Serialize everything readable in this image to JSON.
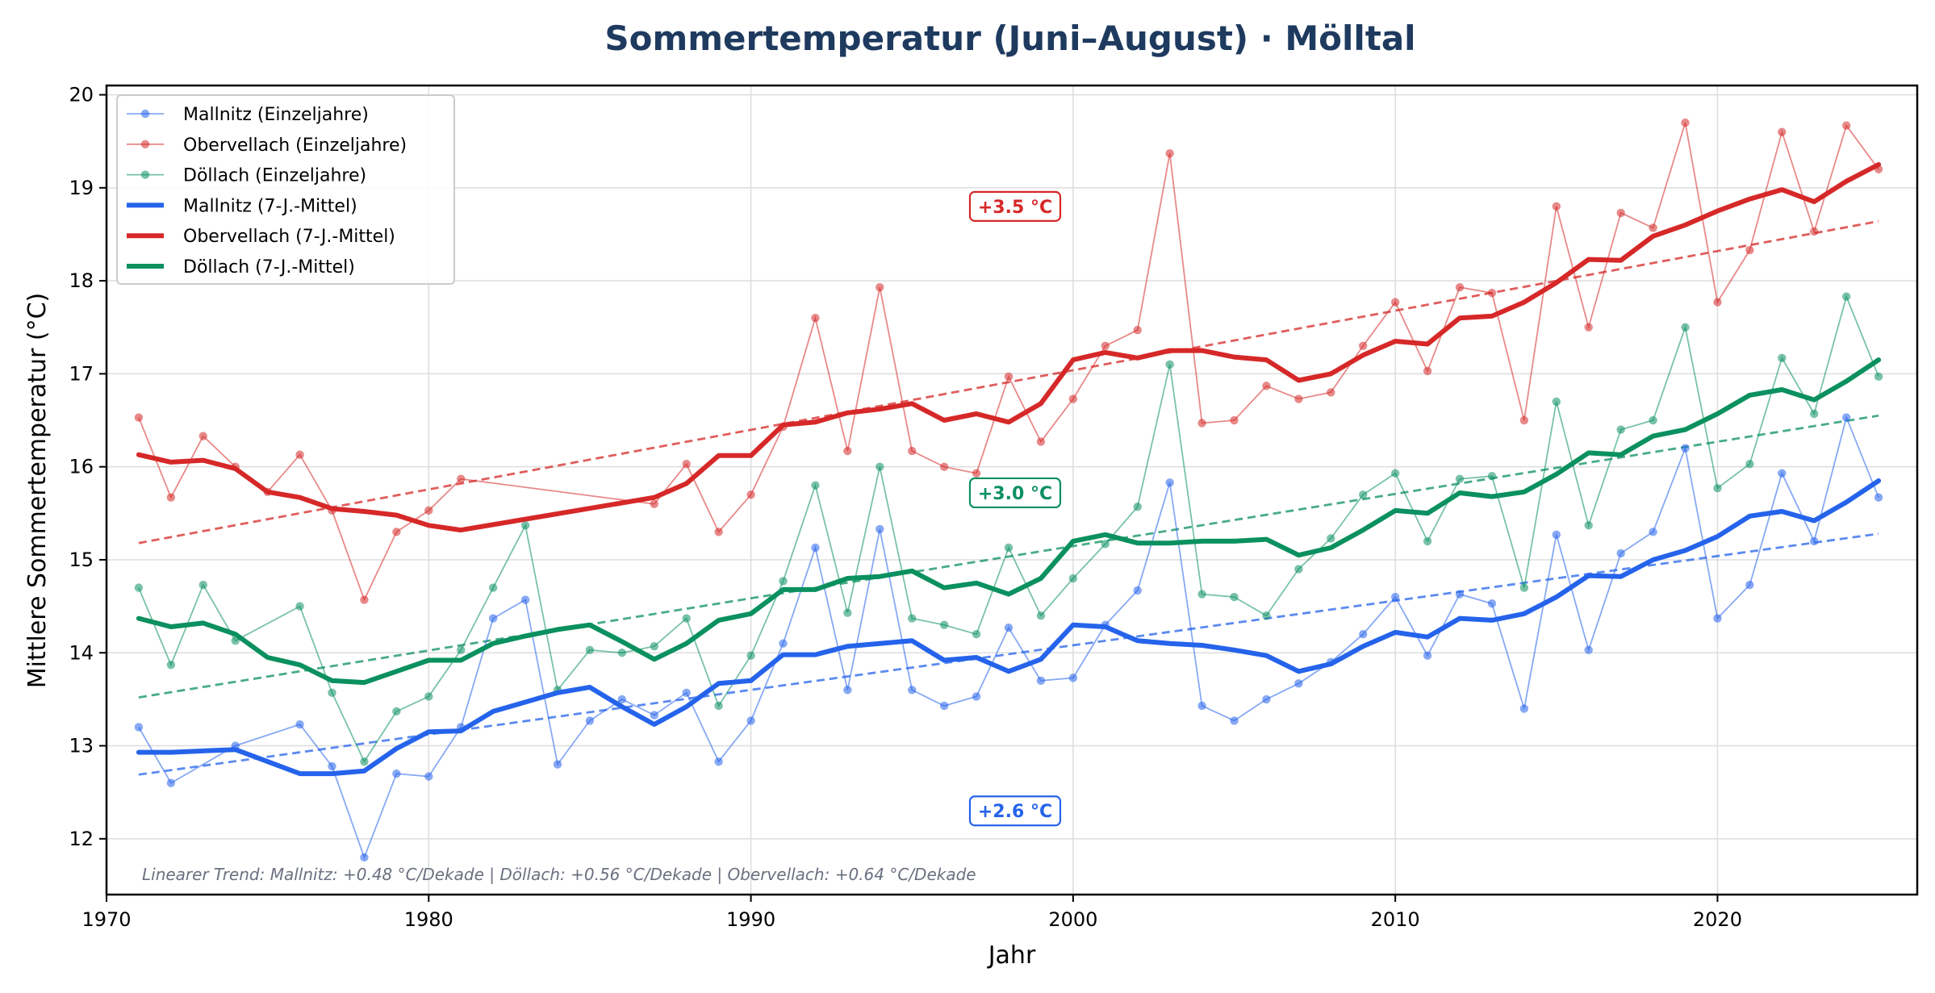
{
  "chart_data": {
    "type": "line",
    "title": "Sommertemperatur (Juni–August) · Mölltal",
    "xlabel": "Jahr",
    "ylabel": "Mittlere Sommertemperatur (°C)",
    "xlim": [
      1970,
      2026.2
    ],
    "ylim": [
      11.4,
      20.1
    ],
    "xticks": [
      1970,
      1980,
      1990,
      2000,
      2010,
      2020
    ],
    "yticks": [
      12,
      13,
      14,
      15,
      16,
      17,
      18,
      19,
      20
    ],
    "grid": true,
    "legend_position": "top-left",
    "colors": {
      "Mallnitz": "#2563eb",
      "Obervellach": "#d62828",
      "Döllach": "#0b9060",
      "title": "#1e3a5f",
      "note": "#6b7080"
    },
    "series": [
      {
        "name": "Mallnitz (Einzeljahre)",
        "station": "Mallnitz",
        "kind": "yearly",
        "x": [
          1971,
          1972,
          1974,
          1976,
          1977,
          1978,
          1979,
          1980,
          1981,
          1982,
          1983,
          1984,
          1985,
          1986,
          1987,
          1988,
          1989,
          1990,
          1991,
          1992,
          1993,
          1994,
          1995,
          1996,
          1997,
          1998,
          1999,
          2000,
          2001,
          2002,
          2003,
          2004,
          2005,
          2006,
          2007,
          2008,
          2009,
          2010,
          2011,
          2012,
          2013,
          2014,
          2015,
          2016,
          2017,
          2018,
          2019,
          2020,
          2021,
          2022,
          2023,
          2024,
          2025
        ],
        "y": [
          13.2,
          12.6,
          13.0,
          13.23,
          12.78,
          11.8,
          12.7,
          12.67,
          13.2,
          14.37,
          14.57,
          12.8,
          13.27,
          13.5,
          13.33,
          13.57,
          12.83,
          13.27,
          14.1,
          15.13,
          13.6,
          15.33,
          13.6,
          13.43,
          13.53,
          14.27,
          13.7,
          13.73,
          14.3,
          14.67,
          15.83,
          13.43,
          13.27,
          13.5,
          13.67,
          13.9,
          14.2,
          14.6,
          13.97,
          14.63,
          14.53,
          13.4,
          15.27,
          14.03,
          15.07,
          15.3,
          16.2,
          14.37,
          14.73,
          15.93,
          15.2,
          16.53,
          15.67
        ]
      },
      {
        "name": "Obervellach (Einzeljahre)",
        "station": "Obervellach",
        "kind": "yearly",
        "x": [
          1971,
          1972,
          1973,
          1974,
          1975,
          1976,
          1977,
          1978,
          1979,
          1980,
          1981,
          1987,
          1988,
          1989,
          1990,
          1991,
          1992,
          1993,
          1994,
          1995,
          1996,
          1997,
          1998,
          1999,
          2000,
          2001,
          2002,
          2003,
          2004,
          2005,
          2006,
          2007,
          2008,
          2009,
          2010,
          2011,
          2012,
          2013,
          2014,
          2015,
          2016,
          2017,
          2018,
          2019,
          2020,
          2021,
          2022,
          2023,
          2024,
          2025
        ],
        "y": [
          16.53,
          15.67,
          16.33,
          16.0,
          15.73,
          16.13,
          15.53,
          14.57,
          15.3,
          15.53,
          15.87,
          15.6,
          16.03,
          15.3,
          15.7,
          16.43,
          17.6,
          16.17,
          17.93,
          16.17,
          16.0,
          15.93,
          16.97,
          16.27,
          16.73,
          17.3,
          17.47,
          19.37,
          16.47,
          16.5,
          16.87,
          16.73,
          16.8,
          17.3,
          17.77,
          17.03,
          17.93,
          17.87,
          16.5,
          18.8,
          17.5,
          18.73,
          18.57,
          19.7,
          17.77,
          18.33,
          19.6,
          18.53,
          19.67,
          19.2
        ]
      },
      {
        "name": "Döllach (Einzeljahre)",
        "station": "Döllach",
        "kind": "yearly",
        "x": [
          1971,
          1972,
          1973,
          1974,
          1976,
          1977,
          1978,
          1979,
          1980,
          1981,
          1982,
          1983,
          1984,
          1985,
          1986,
          1987,
          1988,
          1989,
          1990,
          1991,
          1992,
          1993,
          1994,
          1995,
          1996,
          1997,
          1998,
          1999,
          2000,
          2001,
          2002,
          2003,
          2004,
          2005,
          2006,
          2007,
          2008,
          2009,
          2010,
          2011,
          2012,
          2013,
          2014,
          2015,
          2016,
          2017,
          2018,
          2019,
          2020,
          2021,
          2022,
          2023,
          2024,
          2025
        ],
        "y": [
          14.7,
          13.87,
          14.73,
          14.13,
          14.5,
          13.57,
          12.83,
          13.37,
          13.53,
          14.03,
          14.7,
          15.37,
          13.6,
          14.03,
          14.0,
          14.07,
          14.37,
          13.43,
          13.97,
          14.77,
          15.8,
          14.43,
          16.0,
          14.37,
          14.3,
          14.2,
          15.13,
          14.4,
          14.8,
          15.17,
          15.57,
          17.1,
          14.63,
          14.6,
          14.4,
          14.9,
          15.23,
          15.7,
          15.93,
          15.2,
          15.87,
          15.9,
          14.7,
          16.7,
          15.37,
          16.4,
          16.5,
          17.5,
          15.77,
          16.03,
          17.17,
          16.57,
          17.83,
          16.97
        ]
      },
      {
        "name": "Mallnitz (7-J.-Mittel)",
        "station": "Mallnitz",
        "kind": "smooth",
        "x": [
          1971,
          1972,
          1974,
          1975,
          1976,
          1977,
          1978,
          1979,
          1980,
          1981,
          1982,
          1983,
          1984,
          1985,
          1986,
          1987,
          1988,
          1989,
          1990,
          1991,
          1992,
          1993,
          1994,
          1995,
          1996,
          1997,
          1998,
          1999,
          2000,
          2001,
          2002,
          2003,
          2004,
          2005,
          2006,
          2007,
          2008,
          2009,
          2010,
          2011,
          2012,
          2013,
          2014,
          2015,
          2016,
          2017,
          2018,
          2019,
          2020,
          2021,
          2022,
          2023,
          2024,
          2025
        ],
        "y": [
          12.93,
          12.93,
          12.96,
          12.83,
          12.7,
          12.7,
          12.73,
          12.97,
          13.15,
          13.16,
          13.37,
          13.47,
          13.57,
          13.63,
          13.42,
          13.23,
          13.42,
          13.67,
          13.7,
          13.98,
          13.98,
          14.07,
          14.1,
          14.13,
          13.92,
          13.95,
          13.8,
          13.93,
          14.3,
          14.28,
          14.13,
          14.1,
          14.08,
          14.03,
          13.97,
          13.8,
          13.88,
          14.07,
          14.22,
          14.17,
          14.37,
          14.35,
          14.42,
          14.6,
          14.83,
          14.82,
          15.0,
          15.1,
          15.25,
          15.47,
          15.52,
          15.42,
          15.62,
          15.85
        ]
      },
      {
        "name": "Obervellach (7-J.-Mittel)",
        "station": "Obervellach",
        "kind": "smooth",
        "x": [
          1971,
          1972,
          1973,
          1974,
          1975,
          1976,
          1977,
          1978,
          1979,
          1980,
          1981,
          1987,
          1988,
          1989,
          1990,
          1991,
          1992,
          1993,
          1994,
          1995,
          1996,
          1997,
          1998,
          1999,
          2000,
          2001,
          2002,
          2003,
          2004,
          2005,
          2006,
          2007,
          2008,
          2009,
          2010,
          2011,
          2012,
          2013,
          2014,
          2015,
          2016,
          2017,
          2018,
          2019,
          2020,
          2021,
          2022,
          2023,
          2024,
          2025
        ],
        "y": [
          16.13,
          16.05,
          16.07,
          15.98,
          15.73,
          15.67,
          15.55,
          15.52,
          15.48,
          15.37,
          15.32,
          15.67,
          15.82,
          16.12,
          16.12,
          16.45,
          16.48,
          16.58,
          16.62,
          16.68,
          16.5,
          16.57,
          16.48,
          16.68,
          17.15,
          17.23,
          17.17,
          17.25,
          17.25,
          17.18,
          17.15,
          16.93,
          17.0,
          17.2,
          17.35,
          17.32,
          17.6,
          17.62,
          17.77,
          17.98,
          18.23,
          18.22,
          18.48,
          18.6,
          18.75,
          18.88,
          18.98,
          18.85,
          19.07,
          19.25
        ]
      },
      {
        "name": "Döllach (7-J.-Mittel)",
        "station": "Döllach",
        "kind": "smooth",
        "x": [
          1971,
          1972,
          1973,
          1974,
          1975,
          1976,
          1977,
          1978,
          1979,
          1980,
          1981,
          1982,
          1983,
          1984,
          1985,
          1986,
          1987,
          1988,
          1989,
          1990,
          1991,
          1992,
          1993,
          1994,
          1995,
          1996,
          1997,
          1998,
          1999,
          2000,
          2001,
          2002,
          2003,
          2004,
          2005,
          2006,
          2007,
          2008,
          2009,
          2010,
          2011,
          2012,
          2013,
          2014,
          2015,
          2016,
          2017,
          2018,
          2019,
          2020,
          2021,
          2022,
          2023,
          2024,
          2025
        ],
        "y": [
          14.37,
          14.28,
          14.32,
          14.2,
          13.95,
          13.87,
          13.7,
          13.68,
          13.8,
          13.92,
          13.92,
          14.1,
          14.18,
          14.25,
          14.3,
          14.12,
          13.93,
          14.1,
          14.35,
          14.42,
          14.68,
          14.68,
          14.8,
          14.82,
          14.88,
          14.7,
          14.75,
          14.63,
          14.8,
          15.2,
          15.27,
          15.18,
          15.18,
          15.2,
          15.2,
          15.22,
          15.05,
          15.13,
          15.32,
          15.53,
          15.5,
          15.72,
          15.68,
          15.73,
          15.92,
          16.15,
          16.13,
          16.33,
          16.4,
          16.57,
          16.77,
          16.83,
          16.72,
          16.92,
          17.15
        ]
      }
    ],
    "trends": [
      {
        "station": "Mallnitz",
        "x": [
          1971,
          2025
        ],
        "y": [
          12.69,
          15.28
        ]
      },
      {
        "station": "Obervellach",
        "x": [
          1971,
          2025
        ],
        "y": [
          15.18,
          18.64
        ]
      },
      {
        "station": "Döllach",
        "x": [
          1971,
          2025
        ],
        "y": [
          13.52,
          16.55
        ]
      }
    ],
    "annotations": [
      {
        "text": "+3.5 °C",
        "station": "Obervellach",
        "x": 1998.2,
        "y": 18.8
      },
      {
        "text": "+3.0 °C",
        "station": "Döllach",
        "x": 1998.2,
        "y": 15.72
      },
      {
        "text": "+2.6 °C",
        "station": "Mallnitz",
        "x": 1998.2,
        "y": 12.3
      }
    ],
    "note": "Linearer Trend: Mallnitz: +0.48 °C/Dekade  |  Döllach: +0.56 °C/Dekade  |  Obervellach: +0.64 °C/Dekade"
  }
}
